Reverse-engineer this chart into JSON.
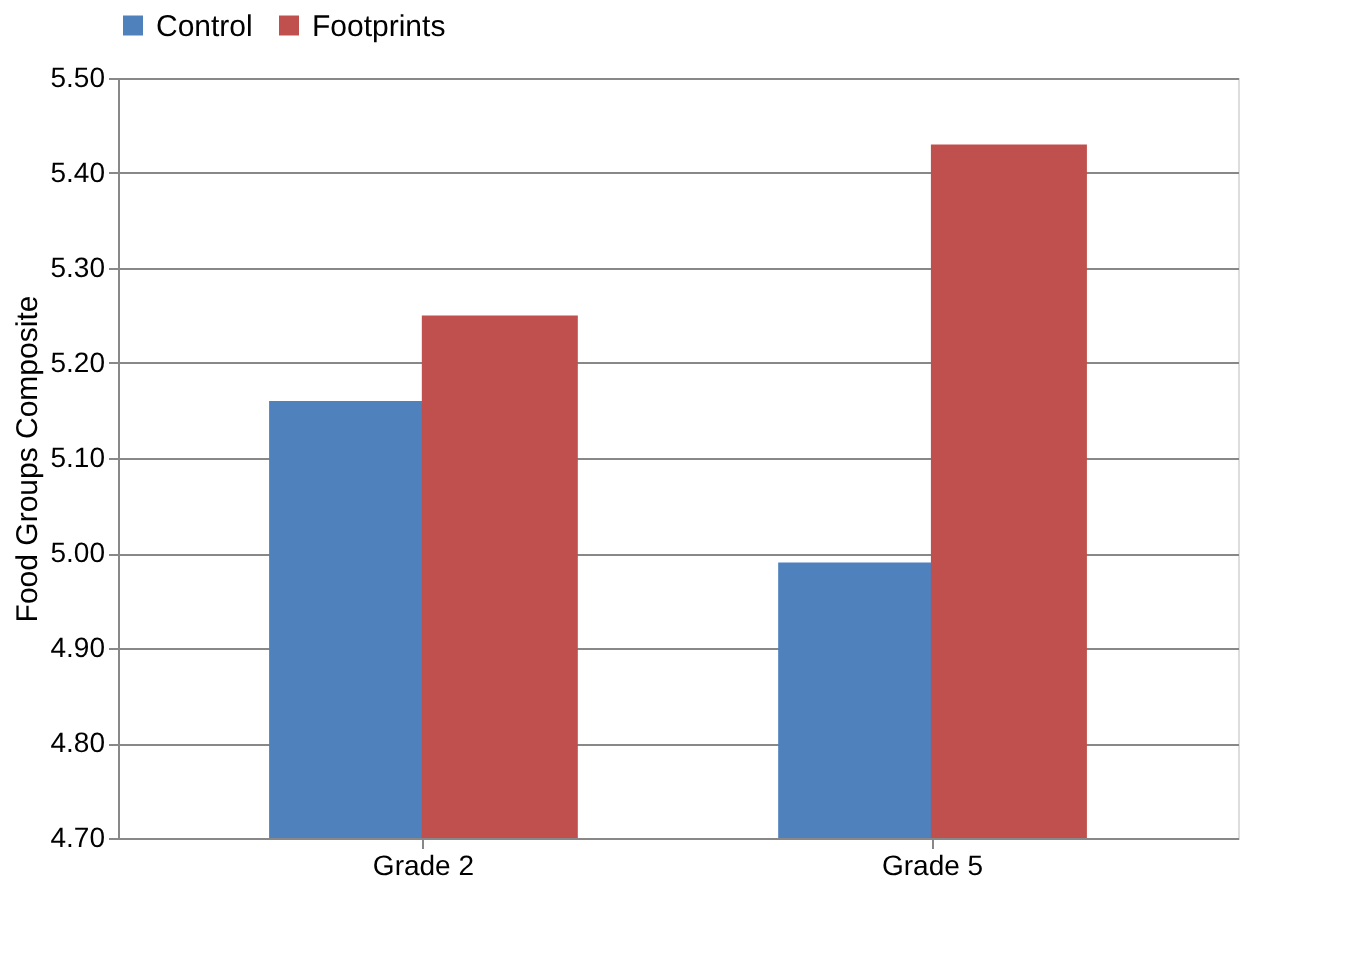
{
  "chart_data": {
    "type": "bar",
    "ylabel": "Food Groups Composite",
    "categories": [
      "Grade 2",
      "Grade 5"
    ],
    "series": [
      {
        "name": "Control",
        "color": "#4f81bd",
        "values": [
          5.16,
          4.99
        ]
      },
      {
        "name": "Footprints",
        "color": "#c0504d",
        "values": [
          5.25,
          5.43
        ]
      }
    ],
    "ylim": [
      4.7,
      5.5
    ],
    "yticks": [
      {
        "value": 4.7,
        "label": "4.70"
      },
      {
        "value": 4.8,
        "label": "4.80"
      },
      {
        "value": 4.9,
        "label": "4.90"
      },
      {
        "value": 5.0,
        "label": "5.00"
      },
      {
        "value": 5.1,
        "label": "5.10"
      },
      {
        "value": 5.2,
        "label": "5.20"
      },
      {
        "value": 5.3,
        "label": "5.30"
      },
      {
        "value": 5.4,
        "label": "5.40"
      },
      {
        "value": 5.5,
        "label": "5.50"
      }
    ],
    "grid": "y",
    "legend": "top"
  }
}
